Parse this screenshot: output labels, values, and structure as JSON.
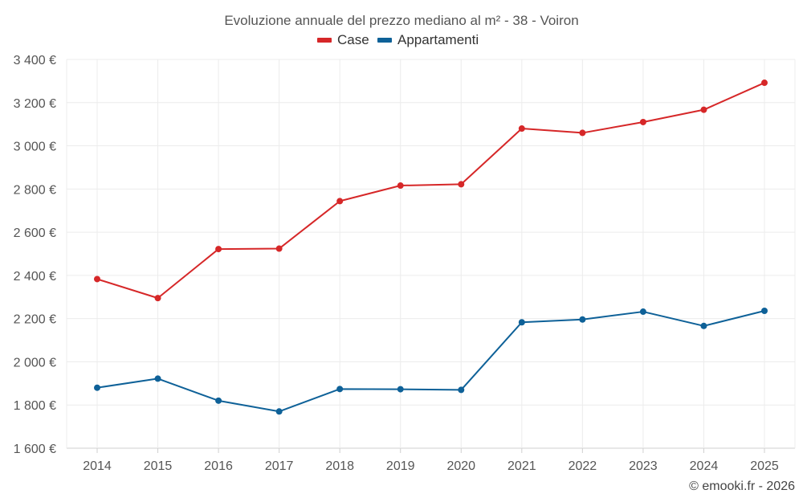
{
  "chart_data": {
    "type": "line",
    "title": "Evoluzione annuale del prezzo mediano al m² - 38 - Voiron",
    "categories": [
      "2014",
      "2015",
      "2016",
      "2017",
      "2018",
      "2019",
      "2020",
      "2021",
      "2022",
      "2023",
      "2024",
      "2025"
    ],
    "series": [
      {
        "name": "Case",
        "color": "#d62728",
        "values": [
          2383,
          2295,
          2522,
          2524,
          2744,
          2816,
          2822,
          3080,
          3060,
          3110,
          3167,
          3292
        ]
      },
      {
        "name": "Appartamenti",
        "color": "#0e6198",
        "values": [
          1880,
          1922,
          1820,
          1770,
          1874,
          1873,
          1870,
          2183,
          2196,
          2232,
          2166,
          2236
        ]
      }
    ],
    "ylim": [
      1600,
      3400
    ],
    "yticks": [
      1600,
      1800,
      2000,
      2200,
      2400,
      2600,
      2800,
      3000,
      3200,
      3400
    ],
    "ytick_labels": [
      "1 600 €",
      "1 800 €",
      "2 000 €",
      "2 200 €",
      "2 400 €",
      "2 600 €",
      "2 800 €",
      "3 000 €",
      "3 200 €",
      "3 400 €"
    ],
    "xlabel": "",
    "ylabel": "",
    "grid": true,
    "legend_position": "top-center"
  },
  "credit": "© emooki.fr - 2026"
}
